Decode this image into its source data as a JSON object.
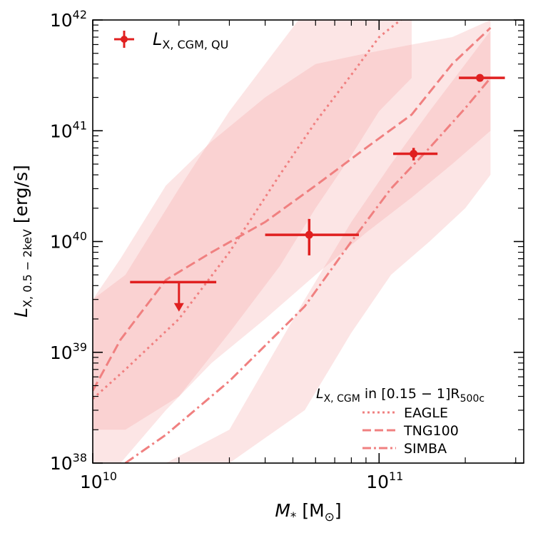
{
  "chart_data": {
    "type": "line",
    "xscale": "log",
    "yscale": "log",
    "xlim": [
      10000000000.0,
      320000000000.0
    ],
    "ylim": [
      1e+38,
      1e+42
    ],
    "xlabel": {
      "main": "M",
      "sub": "*",
      "unit_open": " [M",
      "unit_sub": "⊙",
      "unit_close": "]"
    },
    "ylabel": {
      "main": "L",
      "sub": "X, 0.5 − 2keV",
      "unit": " [erg/s]"
    },
    "xticks_major": [
      {
        "value": 10000000000.0,
        "base": "10",
        "exp": "10"
      },
      {
        "value": 100000000000.0,
        "base": "10",
        "exp": "11"
      }
    ],
    "yticks_major": [
      {
        "value": 1e+38,
        "base": "10",
        "exp": "38"
      },
      {
        "value": 1e+39,
        "base": "10",
        "exp": "39"
      },
      {
        "value": 1e+40,
        "base": "10",
        "exp": "40"
      },
      {
        "value": 1e+41,
        "base": "10",
        "exp": "41"
      },
      {
        "value": 1e+42,
        "base": "10",
        "exp": "42"
      }
    ],
    "observations": {
      "label": {
        "main": "L",
        "sub": "X, CGM, QU"
      },
      "color": "#e02020",
      "points": [
        {
          "x": 57000000000.0,
          "y": 1.15e+40,
          "xlo": 40000000000.0,
          "xhi": 85000000000.0,
          "ylo": 7.5e+39,
          "yhi": 1.6e+40
        },
        {
          "x": 132000000000.0,
          "y": 6.2e+40,
          "xlo": 112000000000.0,
          "xhi": 160000000000.0,
          "ylo": 5.4e+40,
          "yhi": 7e+40
        },
        {
          "x": 225000000000.0,
          "y": 3e+41,
          "xlo": 190000000000.0,
          "xhi": 275000000000.0,
          "ylo": 3e+41,
          "yhi": 3e+41
        }
      ],
      "upper_limits": [
        {
          "x": 20000000000.0,
          "y": 4.3e+39,
          "xlo": 13500000000.0,
          "xhi": 27000000000.0,
          "arrow_to": 2.4e+39
        }
      ]
    },
    "simulation_legend_title": {
      "main": "L",
      "sub": "X, CGM",
      "mid": " in [0.15 − 1]R",
      "end_sub": "500c"
    },
    "series": [
      {
        "name": "EAGLE",
        "style": "dotted",
        "color": "#f08080",
        "x": [
          10000000000.0,
          13000000000.0,
          20000000000.0,
          30000000000.0,
          45000000000.0,
          60000000000.0,
          80000000000.0,
          100000000000.0,
          130000000000.0
        ],
        "y": [
          3.8e+38,
          7e+38,
          2e+39,
          8e+39,
          4e+40,
          1.2e+41,
          3.2e+41,
          7e+41,
          1.2e+42
        ],
        "band_lo": [
          2e+38,
          2e+38,
          4e+38,
          1.5e+39,
          6e+39,
          2e+40,
          6e+40,
          1.5e+41,
          3e+41
        ],
        "band_hi": [
          3e+39,
          5e+39,
          3e+40,
          1.5e+41,
          6e+41,
          1.6e+42,
          1.6e+42,
          1.6e+42,
          1.6e+42
        ]
      },
      {
        "name": "TNG100",
        "style": "dashed",
        "color": "#f08080",
        "x": [
          10000000000.0,
          12500000000.0,
          18000000000.0,
          26000000000.0,
          40000000000.0,
          60000000000.0,
          90000000000.0,
          130000000000.0,
          180000000000.0,
          245000000000.0
        ],
        "y": [
          4.5e+38,
          1.3e+39,
          4.5e+39,
          8e+39,
          1.5e+40,
          3.2e+40,
          7e+40,
          1.4e+41,
          4e+41,
          8.5e+41
        ],
        "band_lo": [
          1e+38,
          1e+38,
          3e+38,
          8e+38,
          2e+39,
          5e+39,
          1.2e+40,
          2.5e+40,
          5e+40,
          1e+41
        ],
        "band_hi": [
          3e+39,
          7e+39,
          3.2e+40,
          8e+40,
          2e+41,
          4e+41,
          5e+41,
          6e+41,
          7e+41,
          1e+42
        ]
      },
      {
        "name": "SIMBA",
        "style": "dashdot",
        "color": "#f08080",
        "x": [
          13000000000.0,
          18000000000.0,
          30000000000.0,
          55000000000.0,
          80000000000.0,
          110000000000.0,
          150000000000.0,
          200000000000.0,
          245000000000.0
        ],
        "y": [
          1e+38,
          1.8e+38,
          5.5e+38,
          2.6e+39,
          1e+40,
          3e+40,
          7e+40,
          1.6e+41,
          3e+41
        ],
        "band_lo": [
          1e+38,
          1e+38,
          1e+38,
          3e+38,
          1.5e+39,
          5e+39,
          1e+40,
          2e+40,
          4e+40
        ],
        "band_hi": [
          1e+38,
          1e+38,
          2e+38,
          3e+39,
          1.5e+40,
          5e+40,
          1.5e+41,
          4e+41,
          8e+41
        ]
      }
    ],
    "extra_band": {
      "color": "#f8cccc",
      "x": [
        10000000000.0,
        18000000000.0,
        30000000000.0,
        50000000000.0,
        80000000000.0,
        130000000000.0,
        245000000000.0
      ],
      "lo": [
        1e+38,
        1e+38,
        1e+38,
        1e+38,
        1e+38,
        1e+38,
        1e+38
      ],
      "hi": [
        1e+38,
        1e+38,
        1e+38,
        1e+38,
        1e+38,
        1e+38,
        1e+38
      ]
    }
  }
}
